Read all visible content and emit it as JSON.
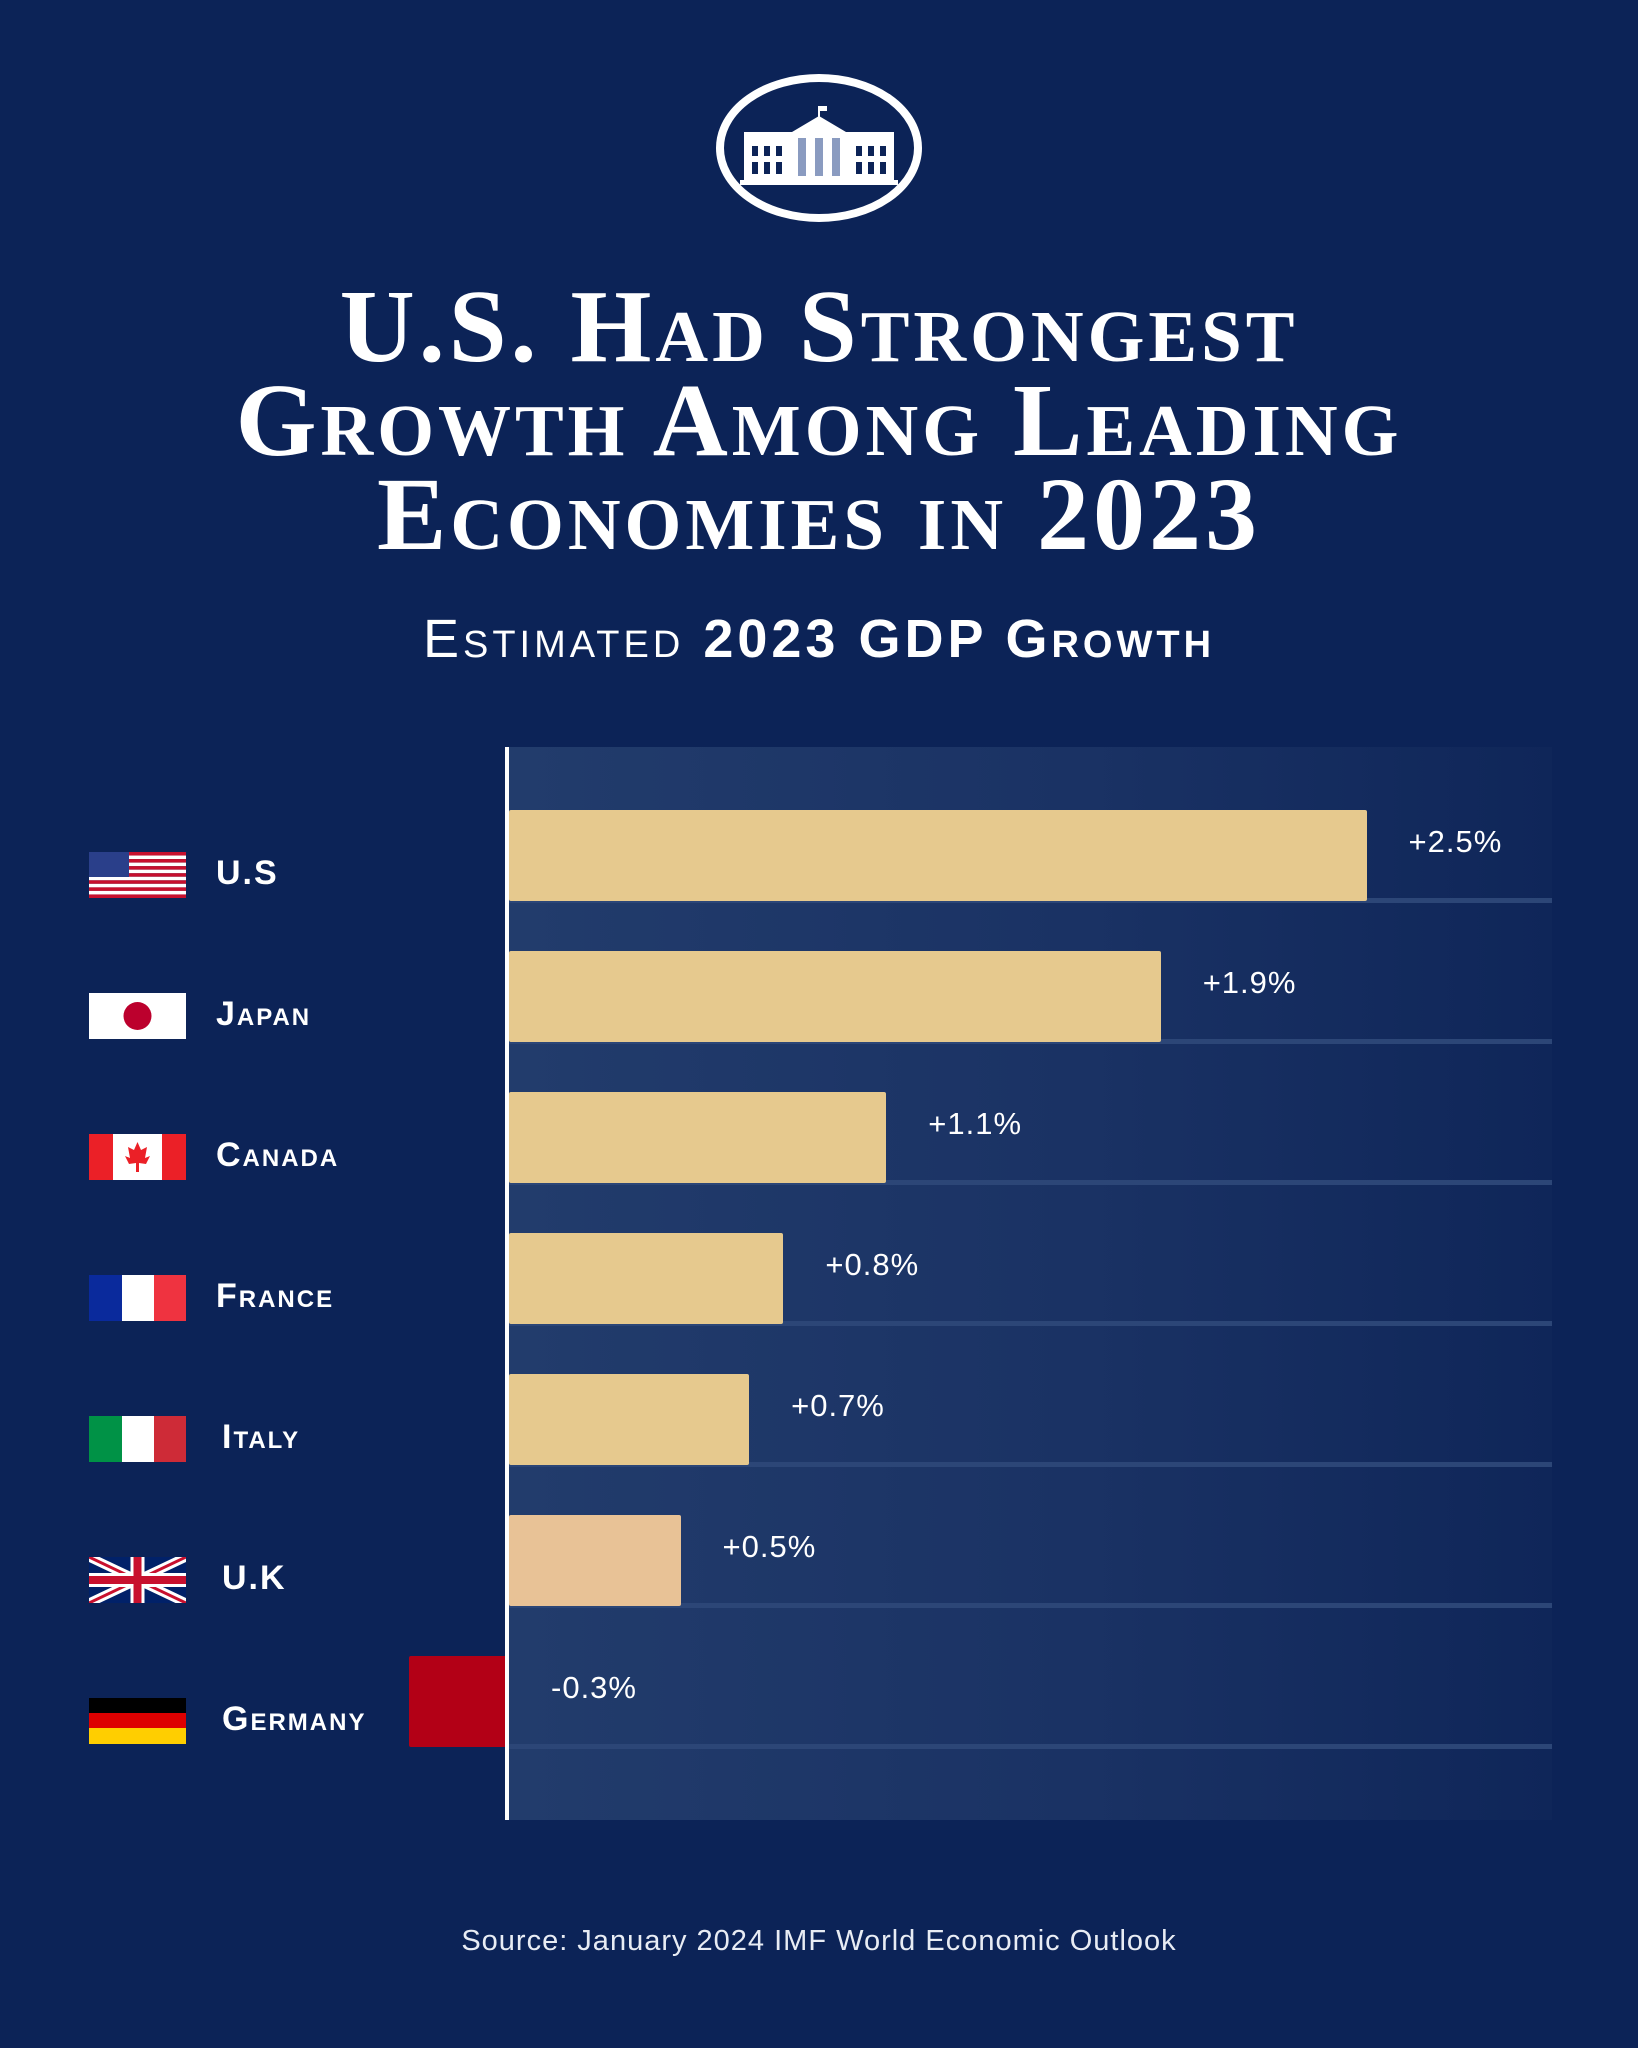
{
  "logo": "white-house-logo",
  "title_lines": [
    "U.S. Had Strongest",
    "Growth Among Leading",
    "Economies in 2023"
  ],
  "subtitle": {
    "light": "Estimated",
    "bold": "2023 GDP Growth"
  },
  "source": "Source: January 2024 IMF World Economic Outlook",
  "colors": {
    "background": "#0c2357",
    "positive_bar": "#e6c98e",
    "uk_bar": "#e8c296",
    "negative_bar": "#b30016",
    "axis": "#ffffff"
  },
  "chart_data": {
    "type": "bar",
    "orientation": "horizontal",
    "title": "Estimated 2023 GDP Growth",
    "categories": [
      "U.S",
      "Japan",
      "Canada",
      "France",
      "Italy",
      "U.K",
      "Germany"
    ],
    "values": [
      2.5,
      1.9,
      1.1,
      0.8,
      0.7,
      0.5,
      -0.3
    ],
    "value_labels": [
      "+2.5%",
      "+1.9%",
      "+1.1%",
      "+0.8%",
      "+0.7%",
      "+0.5%",
      "-0.3%"
    ],
    "unit": "%",
    "flags": [
      "us-flag",
      "japan-flag",
      "canada-flag",
      "france-flag",
      "italy-flag",
      "uk-flag",
      "germany-flag"
    ],
    "grid": false,
    "legend": "none"
  }
}
